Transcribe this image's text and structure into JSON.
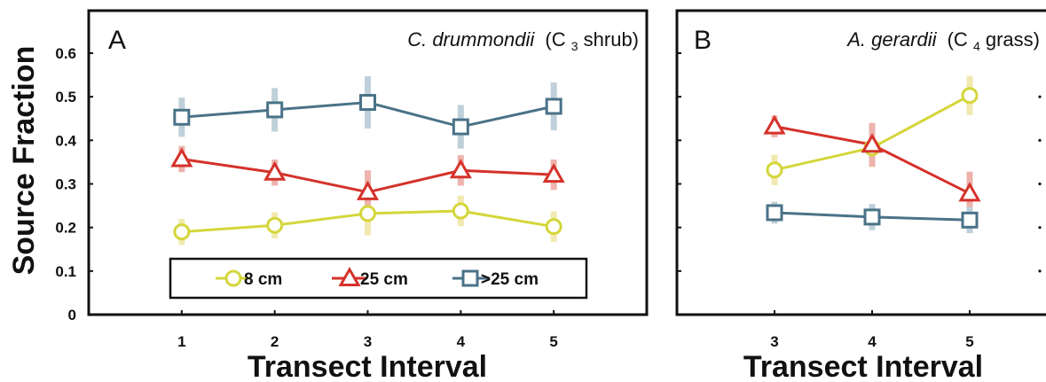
{
  "chart_data": [
    {
      "type": "line",
      "panel_letter": "A",
      "species_name": "C. drummondii",
      "species_group_prefix": "(C",
      "species_group_sub": "3",
      "species_group_suffix": " shrub)",
      "xlabel": "Transect Interval",
      "ylabel": "Source Fraction",
      "x": [
        1,
        2,
        3,
        4,
        5
      ],
      "xlim": [
        0,
        6
      ],
      "ylim": [
        0,
        0.6
      ],
      "yticks": [
        "0",
        "0.1",
        "0.2",
        "0.3",
        "0.4",
        "0.5",
        "0.6"
      ],
      "xticks": [
        "1",
        "2",
        "3",
        "4",
        "5"
      ],
      "grid": false,
      "legend_position": "bottom-center",
      "series": [
        {
          "name": "8 cm",
          "marker": "circle",
          "color": "#d4d63a",
          "err_color": "#f2e9b0",
          "values": [
            0.19,
            0.205,
            0.232,
            0.238,
            0.202
          ],
          "err": [
            0.03,
            0.03,
            0.05,
            0.035,
            0.035
          ]
        },
        {
          "name": "25 cm",
          "marker": "triangle",
          "color": "#d4322a",
          "err_color": "#eeb3ad",
          "values": [
            0.357,
            0.326,
            0.281,
            0.331,
            0.321
          ],
          "err": [
            0.03,
            0.03,
            0.05,
            0.035,
            0.035
          ]
        },
        {
          "name": ">25 cm",
          "marker": "square",
          "color": "#4a7288",
          "err_color": "#bfd0da",
          "values": [
            0.453,
            0.47,
            0.487,
            0.431,
            0.478
          ],
          "err": [
            0.045,
            0.05,
            0.06,
            0.05,
            0.055
          ]
        }
      ]
    },
    {
      "type": "line",
      "panel_letter": "B",
      "species_name": "A. gerardii",
      "species_group_prefix": "(C",
      "species_group_sub": "4",
      "species_group_suffix": " grass)",
      "xlabel": "Transect Interval",
      "x": [
        3,
        4,
        5
      ],
      "xlim": [
        2,
        6
      ],
      "ylim": [
        0,
        0.6
      ],
      "xticks": [
        "3",
        "4",
        "5"
      ],
      "grid": false,
      "series": [
        {
          "name": "8 cm",
          "marker": "circle",
          "color": "#d4d63a",
          "err_color": "#f2e9b0",
          "values": [
            0.332,
            0.383,
            0.503
          ],
          "err": [
            0.035,
            0.045,
            0.045
          ]
        },
        {
          "name": "25 cm",
          "marker": "triangle",
          "color": "#d4322a",
          "err_color": "#eeb3ad",
          "values": [
            0.432,
            0.39,
            0.278
          ],
          "err": [
            0.025,
            0.05,
            0.05
          ]
        },
        {
          "name": ">25 cm",
          "marker": "square",
          "color": "#4a7288",
          "err_color": "#bfd0da",
          "values": [
            0.234,
            0.224,
            0.217
          ],
          "err": [
            0.025,
            0.03,
            0.03
          ]
        }
      ]
    }
  ]
}
